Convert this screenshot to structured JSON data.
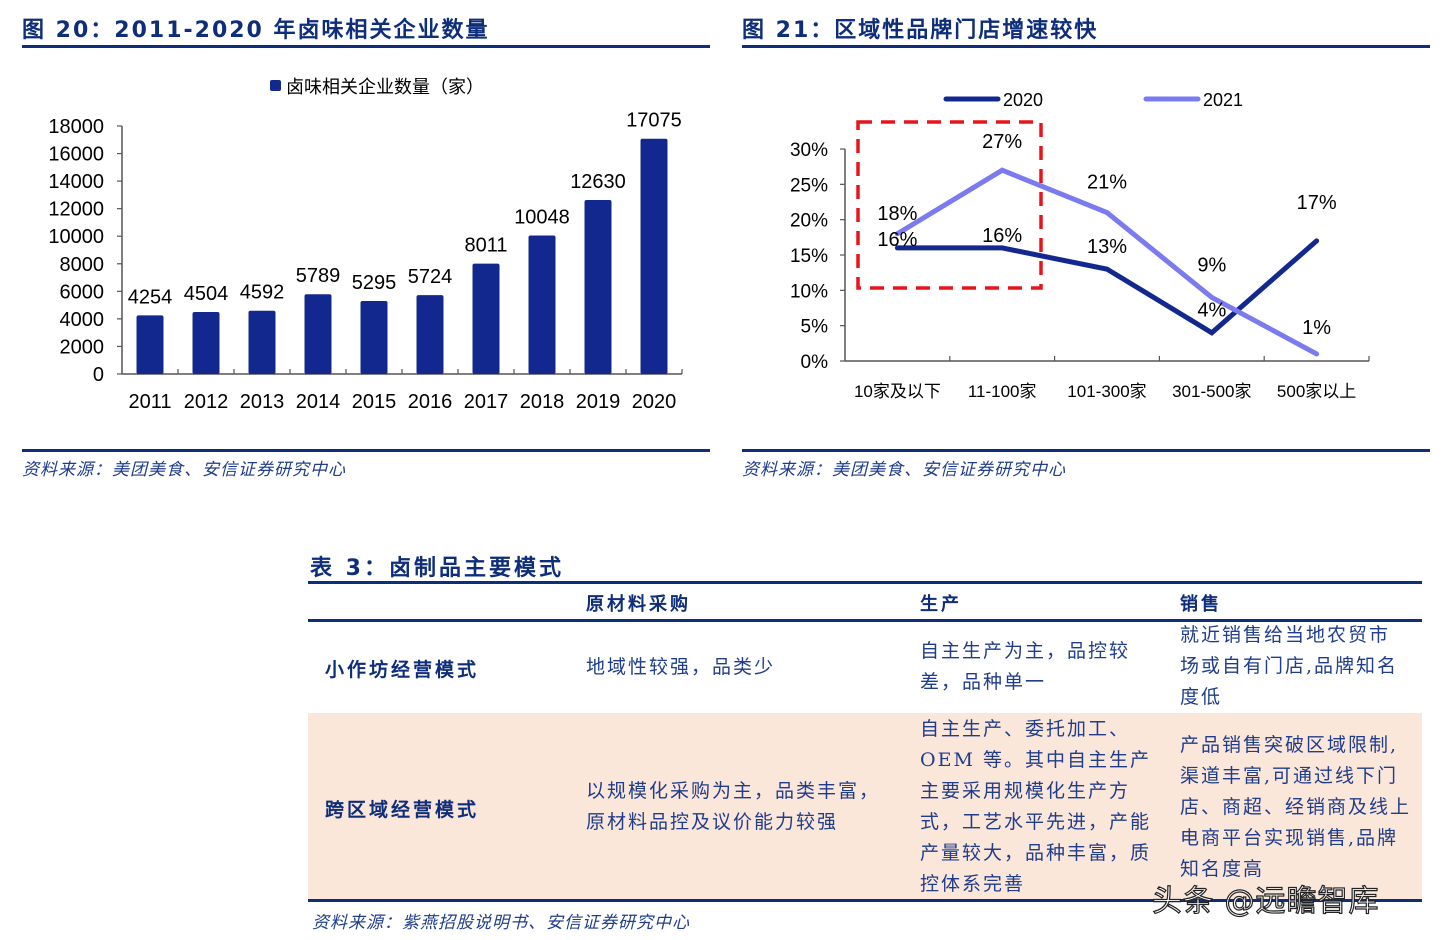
{
  "figure20": {
    "title": "图 20：2011-2020 年卤味相关企业数量",
    "source": "资料来源：美团美食、安信证券研究中心"
  },
  "figure21": {
    "title": "图 21：区域性品牌门店增速较快",
    "source": "资料来源：美团美食、安信证券研究中心"
  },
  "chart_data": [
    {
      "type": "bar",
      "title": "图 20：2011-2020 年卤味相关企业数量",
      "legend": [
        "卤味相关企业数量（家）"
      ],
      "legend_position": "top",
      "categories": [
        "2011",
        "2012",
        "2013",
        "2014",
        "2015",
        "2016",
        "2017",
        "2018",
        "2019",
        "2020"
      ],
      "values": [
        4254,
        4504,
        4592,
        5789,
        5295,
        5724,
        8011,
        10048,
        12630,
        17075
      ],
      "data_labels": [
        "4254",
        "4504",
        "4592",
        "5789",
        "5295",
        "5724",
        "8011",
        "10048",
        "12630",
        "17075"
      ],
      "yticks": [
        "0",
        "2000",
        "4000",
        "6000",
        "8000",
        "10000",
        "12000",
        "14000",
        "16000",
        "18000"
      ],
      "xlabel": "",
      "ylabel": "",
      "ylim": [
        0,
        18000
      ],
      "grid": false,
      "color": "#13288f"
    },
    {
      "type": "line",
      "title": "图 21：区域性品牌门店增速较快",
      "categories": [
        "10家及以下",
        "11-100家",
        "101-300家",
        "301-500家",
        "500家以上"
      ],
      "series": [
        {
          "name": "2020",
          "values": [
            16,
            16,
            13,
            4,
            17
          ],
          "labels": [
            "16%",
            "16%",
            "13%",
            "4%",
            "17%"
          ],
          "color": "#13288f"
        },
        {
          "name": "2021",
          "values": [
            18,
            27,
            21,
            9,
            1
          ],
          "labels": [
            "18%",
            "27%",
            "21%",
            "9%",
            "1%"
          ],
          "color": "#7b7bf0"
        }
      ],
      "yticks": [
        "0%",
        "5%",
        "10%",
        "15%",
        "20%",
        "25%",
        "30%"
      ],
      "xlabel": "",
      "ylabel": "",
      "ylim": [
        0,
        30
      ],
      "grid": false,
      "legend_position": "top",
      "annotation": "red dashed box highlighting 10家及以下 and 11-100家 (approx. 10%–33%)",
      "annotation_color": "#e8141c"
    }
  ],
  "table3": {
    "title": "表 3：卤制品主要模式",
    "headers": [
      "",
      "原材料采购",
      "生产",
      "销售"
    ],
    "rows": [
      {
        "label": "小作坊经营模式",
        "procurement": "地域性较强，品类少",
        "production": [
          "自主生产为主，品控较",
          "差，品种单一"
        ],
        "sales": [
          "就近销售给当地农贸市",
          "场或自有门店,品牌知名",
          "度低"
        ]
      },
      {
        "label": "跨区域经营模式",
        "procurement": [
          "以规模化采购为主，品类丰富，",
          "原材料品控及议价能力较强"
        ],
        "production": [
          "自主生产、委托加工、",
          "OEM 等。其中自主生产",
          "主要采用规模化生产方",
          "式，工艺水平先进，产能",
          "产量较大，品种丰富，质",
          "控体系完善"
        ],
        "sales": [
          "产品销售突破区域限制,",
          "渠道丰富,可通过线下门",
          "店、商超、经销商及线上",
          "电商平台实现销售,品牌",
          "知名度高"
        ]
      }
    ],
    "source": "资料来源：紫燕招股说明书、安信证券研究中心"
  },
  "watermark": "头条 @远瞻智库"
}
